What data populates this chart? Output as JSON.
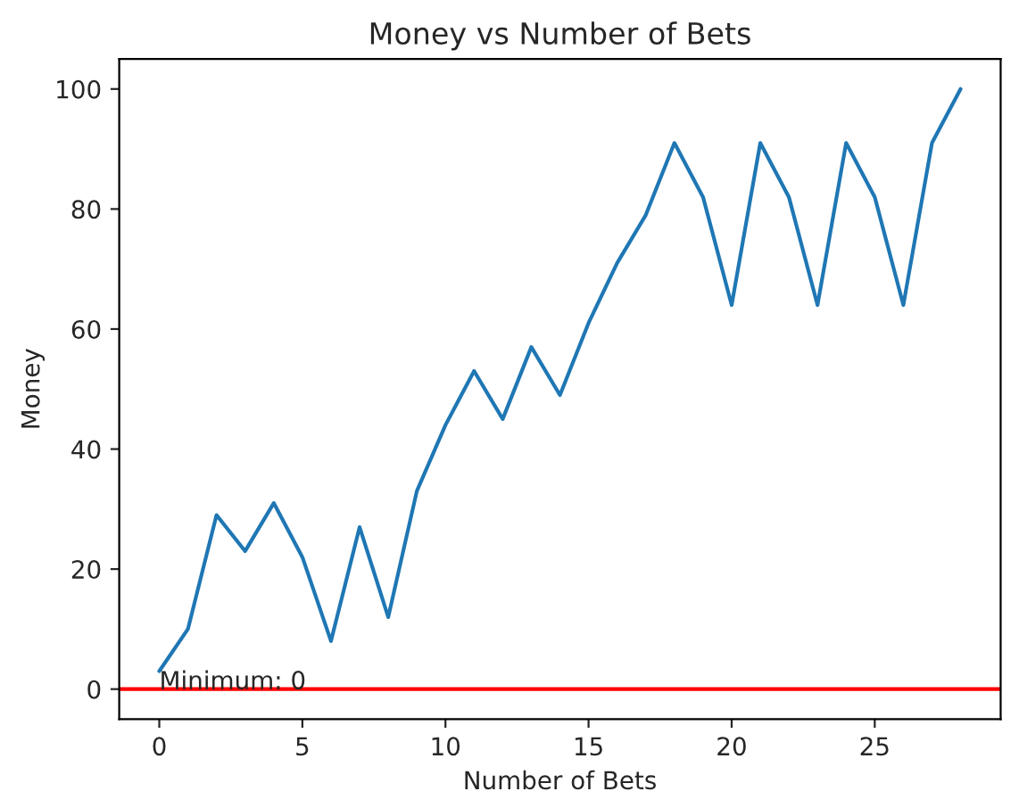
{
  "chart_data": {
    "type": "line",
    "title": "Money vs Number of Bets",
    "xlabel": "Number of Bets",
    "ylabel": "Money",
    "x": [
      0,
      1,
      2,
      3,
      4,
      5,
      6,
      7,
      8,
      9,
      10,
      11,
      12,
      13,
      14,
      15,
      16,
      17,
      18,
      19,
      20,
      21,
      22,
      23,
      24,
      25,
      26,
      27,
      28
    ],
    "series": [
      {
        "color": "#1f77b4",
        "values": [
          3,
          10,
          29,
          23,
          31,
          22,
          8,
          27,
          12,
          33,
          44,
          53,
          45,
          57,
          49,
          61,
          71,
          79,
          91,
          82,
          64,
          91,
          82,
          64,
          91,
          82,
          64,
          91,
          100
        ]
      }
    ],
    "xlim": [
      -1.4,
      29.4
    ],
    "ylim": [
      -5,
      105
    ],
    "xticks": [
      0,
      5,
      10,
      15,
      20,
      25
    ],
    "yticks": [
      0,
      20,
      40,
      60,
      80,
      100
    ],
    "ref_lines": [
      {
        "axis": "y",
        "value": 0,
        "color": "#ff0000"
      }
    ],
    "annotations": [
      {
        "text": "Minimum: 0",
        "x": 0,
        "y": 0
      }
    ],
    "grid": false
  }
}
